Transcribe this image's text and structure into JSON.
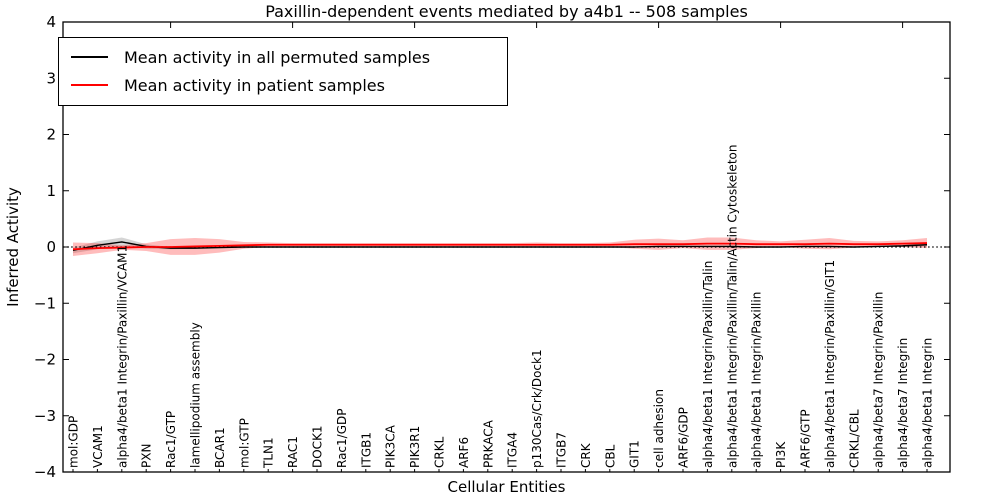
{
  "chart_data": {
    "type": "line",
    "title": "Paxillin-dependent events mediated by a4b1 -- 508 samples",
    "xlabel": "Cellular Entities",
    "ylabel": "Inferred Activity",
    "ylim": [
      -4,
      4
    ],
    "ytick_values": [
      4,
      3,
      2,
      1,
      0,
      -1,
      -2,
      -3,
      -4
    ],
    "ytick_labels": [
      "4",
      "3",
      "2",
      "1",
      "0",
      "−1",
      "−2",
      "−3",
      "−4"
    ],
    "top_tick_entity_numbers": [
      5,
      10,
      15,
      20,
      25,
      30,
      35
    ],
    "grid": false,
    "legend_position": "upper left",
    "zero_reference_line": 0,
    "categories": [
      "mol:GDP",
      "VCAM1",
      "alpha4/beta1 Integrin/Paxillin/VCAM1",
      "PXN",
      "Rac1/GTP",
      "lamellipodium assembly",
      "BCAR1",
      "mol:GTP",
      "TLN1",
      "RAC1",
      "DOCK1",
      "Rac1/GDP",
      "ITGB1",
      "PIK3CA",
      "PIK3R1",
      "CRKL",
      "ARF6",
      "PRKACA",
      "ITGA4",
      "p130Cas/Crk/Dock1",
      "ITGB7",
      "CRK",
      "CBL",
      "GIT1",
      "cell adhesion",
      "ARF6/GDP",
      "alpha4/beta1 Integrin/Paxillin/Talin",
      "alpha4/beta1 Integrin/Paxillin/Talin/Actin Cytoskeleton",
      "alpha4/beta1 Integrin/Paxillin",
      "PI3K",
      "ARF6/GTP",
      "alpha4/beta1 Integrin/Paxillin/GIT1",
      "CRKL/CBL",
      "alpha4/beta7 Integrin/Paxillin",
      "alpha4/beta7 Integrin",
      "alpha4/beta1 Integrin"
    ],
    "series": [
      {
        "name": "Mean activity in all permuted samples",
        "color": "#000000",
        "band_color": "#888888",
        "band_opacity": 0.35,
        "values": [
          -0.06,
          0.03,
          0.09,
          0.01,
          -0.02,
          -0.02,
          -0.01,
          0.0,
          0.0,
          0.0,
          0.0,
          0.0,
          0.0,
          0.0,
          0.0,
          0.0,
          0.0,
          0.0,
          0.0,
          0.0,
          0.0,
          0.0,
          0.0,
          0.0,
          0.01,
          0.01,
          0.01,
          0.01,
          0.0,
          0.0,
          0.01,
          0.01,
          0.0,
          0.01,
          0.02,
          0.04
        ],
        "band_halfwidth": [
          0.05,
          0.07,
          0.08,
          0.04,
          0.02,
          0.01,
          0.01,
          0.01,
          0.01,
          0.01,
          0.01,
          0.01,
          0.01,
          0.01,
          0.01,
          0.01,
          0.01,
          0.01,
          0.01,
          0.01,
          0.01,
          0.01,
          0.01,
          0.01,
          0.01,
          0.01,
          0.01,
          0.01,
          0.01,
          0.01,
          0.01,
          0.01,
          0.01,
          0.01,
          0.02,
          0.03
        ]
      },
      {
        "name": "Mean activity in patient samples",
        "color": "#ff0000",
        "band_color": "#ff2020",
        "band_opacity": 0.3,
        "values": [
          -0.04,
          -0.02,
          -0.01,
          0.0,
          0.0,
          0.01,
          0.02,
          0.03,
          0.04,
          0.04,
          0.04,
          0.04,
          0.04,
          0.04,
          0.04,
          0.04,
          0.04,
          0.04,
          0.04,
          0.04,
          0.04,
          0.04,
          0.04,
          0.05,
          0.05,
          0.05,
          0.06,
          0.06,
          0.05,
          0.05,
          0.05,
          0.06,
          0.05,
          0.05,
          0.06,
          0.07
        ],
        "band_halfwidth": [
          0.12,
          0.09,
          0.04,
          0.07,
          0.14,
          0.15,
          0.12,
          0.06,
          0.04,
          0.03,
          0.03,
          0.03,
          0.03,
          0.03,
          0.03,
          0.03,
          0.03,
          0.03,
          0.03,
          0.04,
          0.03,
          0.03,
          0.04,
          0.08,
          0.1,
          0.07,
          0.11,
          0.11,
          0.07,
          0.05,
          0.08,
          0.1,
          0.06,
          0.05,
          0.06,
          0.09
        ]
      }
    ]
  }
}
